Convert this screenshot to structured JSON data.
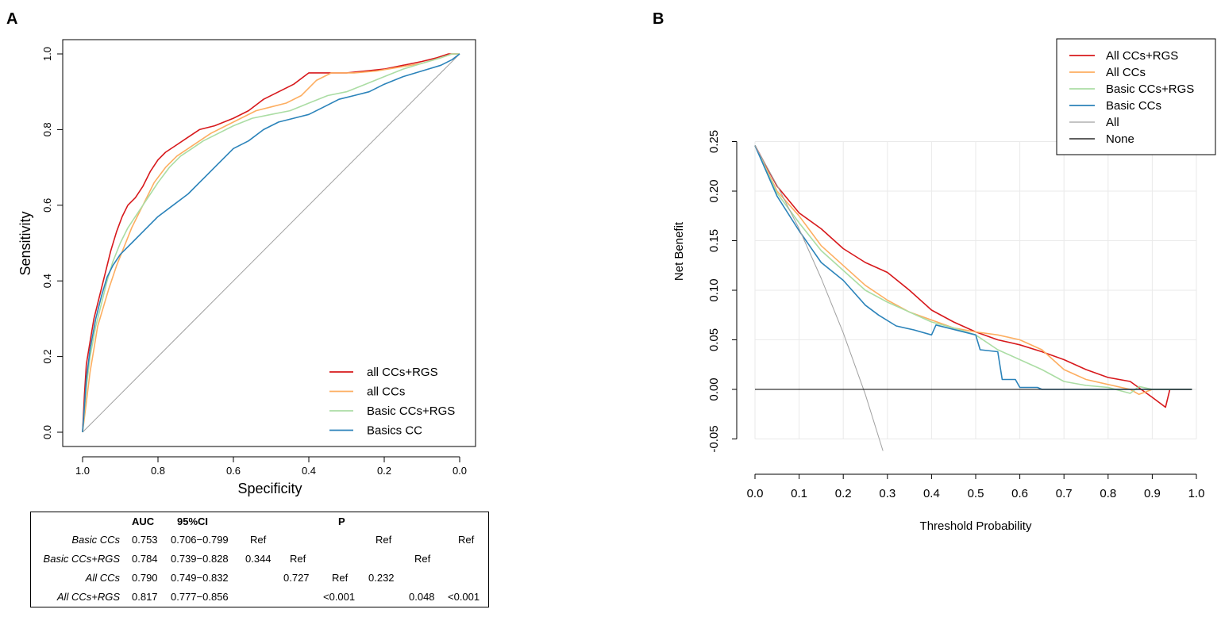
{
  "panel_labels": {
    "a": "A",
    "b": "B"
  },
  "chart_data": [
    {
      "type": "line",
      "panel": "A",
      "xlabel": "Specificity",
      "ylabel": "Sensitivity",
      "xlim": [
        1.0,
        0.0
      ],
      "ylim": [
        0.0,
        1.0
      ],
      "x_reversed": true,
      "x_ticks": [
        1.0,
        0.8,
        0.6,
        0.4,
        0.2,
        0.0
      ],
      "x_tick_labels": [
        "1.0",
        "0.8",
        "0.6",
        "0.4",
        "0.2",
        "0.0"
      ],
      "y_ticks": [
        0.0,
        0.2,
        0.4,
        0.6,
        0.8,
        1.0
      ],
      "y_tick_labels": [
        "0.0",
        "0.2",
        "0.4",
        "0.6",
        "0.8",
        "1.0"
      ],
      "grid": false,
      "legend_position": "bottom-right",
      "reference_line": {
        "color": "#a0a0a0",
        "points": [
          [
            1.0,
            0.0
          ],
          [
            0.0,
            1.0
          ]
        ]
      },
      "series": [
        {
          "name": "all CCs+RGS",
          "color": "#d7191c",
          "points": [
            [
              1.0,
              0.0
            ],
            [
              0.995,
              0.1
            ],
            [
              0.99,
              0.18
            ],
            [
              0.98,
              0.24
            ],
            [
              0.97,
              0.3
            ],
            [
              0.955,
              0.36
            ],
            [
              0.94,
              0.42
            ],
            [
              0.925,
              0.48
            ],
            [
              0.91,
              0.53
            ],
            [
              0.895,
              0.57
            ],
            [
              0.88,
              0.6
            ],
            [
              0.86,
              0.62
            ],
            [
              0.84,
              0.65
            ],
            [
              0.82,
              0.69
            ],
            [
              0.8,
              0.72
            ],
            [
              0.78,
              0.74
            ],
            [
              0.75,
              0.76
            ],
            [
              0.72,
              0.78
            ],
            [
              0.69,
              0.8
            ],
            [
              0.65,
              0.81
            ],
            [
              0.6,
              0.83
            ],
            [
              0.56,
              0.85
            ],
            [
              0.52,
              0.88
            ],
            [
              0.48,
              0.9
            ],
            [
              0.44,
              0.92
            ],
            [
              0.4,
              0.95
            ],
            [
              0.35,
              0.95
            ],
            [
              0.3,
              0.95
            ],
            [
              0.25,
              0.955
            ],
            [
              0.2,
              0.96
            ],
            [
              0.15,
              0.97
            ],
            [
              0.1,
              0.98
            ],
            [
              0.06,
              0.99
            ],
            [
              0.03,
              1.0
            ],
            [
              0.0,
              1.0
            ]
          ]
        },
        {
          "name": "all CCs",
          "color": "#fdae61",
          "points": [
            [
              1.0,
              0.0
            ],
            [
              0.99,
              0.08
            ],
            [
              0.98,
              0.16
            ],
            [
              0.97,
              0.22
            ],
            [
              0.96,
              0.28
            ],
            [
              0.945,
              0.33
            ],
            [
              0.93,
              0.38
            ],
            [
              0.91,
              0.44
            ],
            [
              0.89,
              0.49
            ],
            [
              0.87,
              0.54
            ],
            [
              0.84,
              0.6
            ],
            [
              0.81,
              0.66
            ],
            [
              0.78,
              0.7
            ],
            [
              0.75,
              0.73
            ],
            [
              0.72,
              0.75
            ],
            [
              0.69,
              0.77
            ],
            [
              0.66,
              0.79
            ],
            [
              0.62,
              0.81
            ],
            [
              0.58,
              0.83
            ],
            [
              0.54,
              0.85
            ],
            [
              0.5,
              0.86
            ],
            [
              0.46,
              0.87
            ],
            [
              0.42,
              0.89
            ],
            [
              0.38,
              0.93
            ],
            [
              0.34,
              0.95
            ],
            [
              0.28,
              0.95
            ],
            [
              0.22,
              0.955
            ],
            [
              0.16,
              0.965
            ],
            [
              0.1,
              0.975
            ],
            [
              0.05,
              0.99
            ],
            [
              0.02,
              1.0
            ],
            [
              0.0,
              1.0
            ]
          ]
        },
        {
          "name": "Basic CCs+RGS",
          "color": "#abdda4",
          "points": [
            [
              1.0,
              0.0
            ],
            [
              0.99,
              0.12
            ],
            [
              0.98,
              0.2
            ],
            [
              0.965,
              0.28
            ],
            [
              0.95,
              0.34
            ],
            [
              0.935,
              0.4
            ],
            [
              0.92,
              0.45
            ],
            [
              0.9,
              0.5
            ],
            [
              0.88,
              0.54
            ],
            [
              0.86,
              0.57
            ],
            [
              0.84,
              0.6
            ],
            [
              0.82,
              0.63
            ],
            [
              0.8,
              0.66
            ],
            [
              0.77,
              0.7
            ],
            [
              0.74,
              0.73
            ],
            [
              0.71,
              0.75
            ],
            [
              0.68,
              0.77
            ],
            [
              0.64,
              0.79
            ],
            [
              0.6,
              0.81
            ],
            [
              0.55,
              0.83
            ],
            [
              0.5,
              0.84
            ],
            [
              0.45,
              0.85
            ],
            [
              0.4,
              0.87
            ],
            [
              0.35,
              0.89
            ],
            [
              0.3,
              0.9
            ],
            [
              0.25,
              0.92
            ],
            [
              0.2,
              0.94
            ],
            [
              0.15,
              0.96
            ],
            [
              0.1,
              0.975
            ],
            [
              0.05,
              0.99
            ],
            [
              0.02,
              1.0
            ],
            [
              0.0,
              1.0
            ]
          ]
        },
        {
          "name": "Basics CC",
          "color": "#2b83ba",
          "points": [
            [
              1.0,
              0.0
            ],
            [
              0.99,
              0.14
            ],
            [
              0.98,
              0.22
            ],
            [
              0.965,
              0.3
            ],
            [
              0.95,
              0.36
            ],
            [
              0.935,
              0.41
            ],
            [
              0.92,
              0.44
            ],
            [
              0.9,
              0.47
            ],
            [
              0.87,
              0.5
            ],
            [
              0.84,
              0.53
            ],
            [
              0.8,
              0.57
            ],
            [
              0.76,
              0.6
            ],
            [
              0.72,
              0.63
            ],
            [
              0.68,
              0.67
            ],
            [
              0.64,
              0.71
            ],
            [
              0.6,
              0.75
            ],
            [
              0.56,
              0.77
            ],
            [
              0.52,
              0.8
            ],
            [
              0.48,
              0.82
            ],
            [
              0.44,
              0.83
            ],
            [
              0.4,
              0.84
            ],
            [
              0.36,
              0.86
            ],
            [
              0.32,
              0.88
            ],
            [
              0.28,
              0.89
            ],
            [
              0.24,
              0.9
            ],
            [
              0.2,
              0.92
            ],
            [
              0.15,
              0.94
            ],
            [
              0.1,
              0.955
            ],
            [
              0.05,
              0.97
            ],
            [
              0.02,
              0.985
            ],
            [
              0.0,
              1.0
            ]
          ]
        }
      ]
    },
    {
      "type": "line",
      "panel": "B",
      "xlabel": "Threshold Probability",
      "ylabel": "Net Benefit",
      "xlim": [
        0.0,
        1.0
      ],
      "ylim": [
        -0.05,
        0.25
      ],
      "x_ticks": [
        0.0,
        0.1,
        0.2,
        0.3,
        0.4,
        0.5,
        0.6,
        0.7,
        0.8,
        0.9,
        1.0
      ],
      "x_tick_labels": [
        "0.0",
        "0.1",
        "0.2",
        "0.3",
        "0.4",
        "0.5",
        "0.6",
        "0.7",
        "0.8",
        "0.9",
        "1.0"
      ],
      "y_ticks": [
        -0.05,
        0.0,
        0.05,
        0.1,
        0.15,
        0.2,
        0.25
      ],
      "y_tick_labels": [
        "-0.05",
        "0.00",
        "0.05",
        "0.10",
        "0.15",
        "0.20",
        "0.25"
      ],
      "grid": true,
      "legend_position": "top-right",
      "series": [
        {
          "name": "All CCs+RGS",
          "color": "#d7191c",
          "points": [
            [
              0.0,
              0.246
            ],
            [
              0.05,
              0.205
            ],
            [
              0.1,
              0.178
            ],
            [
              0.15,
              0.162
            ],
            [
              0.2,
              0.142
            ],
            [
              0.25,
              0.128
            ],
            [
              0.3,
              0.118
            ],
            [
              0.35,
              0.1
            ],
            [
              0.4,
              0.08
            ],
            [
              0.45,
              0.068
            ],
            [
              0.5,
              0.058
            ],
            [
              0.55,
              0.05
            ],
            [
              0.6,
              0.045
            ],
            [
              0.65,
              0.038
            ],
            [
              0.7,
              0.03
            ],
            [
              0.75,
              0.02
            ],
            [
              0.8,
              0.012
            ],
            [
              0.85,
              0.008
            ],
            [
              0.9,
              -0.008
            ],
            [
              0.93,
              -0.018
            ],
            [
              0.94,
              0.0
            ],
            [
              0.99,
              0.0
            ]
          ]
        },
        {
          "name": "All CCs",
          "color": "#fdae61",
          "points": [
            [
              0.0,
              0.246
            ],
            [
              0.05,
              0.2
            ],
            [
              0.1,
              0.175
            ],
            [
              0.15,
              0.145
            ],
            [
              0.2,
              0.125
            ],
            [
              0.25,
              0.105
            ],
            [
              0.3,
              0.09
            ],
            [
              0.35,
              0.078
            ],
            [
              0.4,
              0.07
            ],
            [
              0.45,
              0.062
            ],
            [
              0.5,
              0.058
            ],
            [
              0.55,
              0.055
            ],
            [
              0.6,
              0.05
            ],
            [
              0.65,
              0.04
            ],
            [
              0.7,
              0.02
            ],
            [
              0.75,
              0.01
            ],
            [
              0.8,
              0.005
            ],
            [
              0.85,
              0.0
            ],
            [
              0.87,
              -0.005
            ],
            [
              0.9,
              0.0
            ],
            [
              0.99,
              0.0
            ]
          ]
        },
        {
          "name": "Basic CCs+RGS",
          "color": "#abdda4",
          "points": [
            [
              0.0,
              0.246
            ],
            [
              0.05,
              0.198
            ],
            [
              0.1,
              0.168
            ],
            [
              0.15,
              0.14
            ],
            [
              0.2,
              0.12
            ],
            [
              0.25,
              0.1
            ],
            [
              0.3,
              0.088
            ],
            [
              0.35,
              0.078
            ],
            [
              0.4,
              0.068
            ],
            [
              0.45,
              0.062
            ],
            [
              0.5,
              0.055
            ],
            [
              0.55,
              0.04
            ],
            [
              0.6,
              0.03
            ],
            [
              0.65,
              0.02
            ],
            [
              0.7,
              0.008
            ],
            [
              0.75,
              0.004
            ],
            [
              0.8,
              0.002
            ],
            [
              0.85,
              -0.004
            ],
            [
              0.87,
              0.003
            ],
            [
              0.9,
              0.0
            ],
            [
              0.99,
              0.0
            ]
          ]
        },
        {
          "name": "Basic CCs",
          "color": "#2b83ba",
          "points": [
            [
              0.0,
              0.246
            ],
            [
              0.05,
              0.195
            ],
            [
              0.1,
              0.16
            ],
            [
              0.15,
              0.128
            ],
            [
              0.2,
              0.11
            ],
            [
              0.25,
              0.085
            ],
            [
              0.28,
              0.075
            ],
            [
              0.32,
              0.064
            ],
            [
              0.36,
              0.06
            ],
            [
              0.4,
              0.055
            ],
            [
              0.41,
              0.065
            ],
            [
              0.5,
              0.055
            ],
            [
              0.51,
              0.04
            ],
            [
              0.55,
              0.038
            ],
            [
              0.56,
              0.01
            ],
            [
              0.59,
              0.01
            ],
            [
              0.6,
              0.002
            ],
            [
              0.64,
              0.002
            ],
            [
              0.65,
              0.0
            ],
            [
              0.99,
              0.0
            ]
          ]
        },
        {
          "name": "All",
          "color": "#a0a0a0",
          "points": [
            [
              0.0,
              0.246
            ],
            [
              0.05,
              0.206
            ],
            [
              0.1,
              0.162
            ],
            [
              0.15,
              0.112
            ],
            [
              0.2,
              0.057
            ],
            [
              0.25,
              -0.005
            ],
            [
              0.29,
              -0.062
            ]
          ]
        },
        {
          "name": "None",
          "color": "#000000",
          "points": [
            [
              0.0,
              0.0
            ],
            [
              0.99,
              0.0
            ]
          ]
        }
      ]
    }
  ],
  "table": {
    "headers": [
      "AUC",
      "95%CI",
      "P"
    ],
    "rows": [
      {
        "label": "Basic CCs",
        "auc": "0.753",
        "ci": "0.706−0.799",
        "p": [
          "Ref",
          "Ref",
          "Ref"
        ]
      },
      {
        "label": "Basic CCs+RGS",
        "auc": "0.784",
        "ci": "0.739−0.828",
        "p": [
          "0.344",
          "Ref",
          "Ref"
        ]
      },
      {
        "label": "All CCs",
        "auc": "0.790",
        "ci": "0.749−0.832",
        "p": [
          "0.727",
          "Ref",
          "0.232"
        ]
      },
      {
        "label": "All CCs+RGS",
        "auc": "0.817",
        "ci": "0.777−0.856",
        "p": [
          "<0.001",
          "0.048",
          "<0.001"
        ]
      }
    ]
  }
}
